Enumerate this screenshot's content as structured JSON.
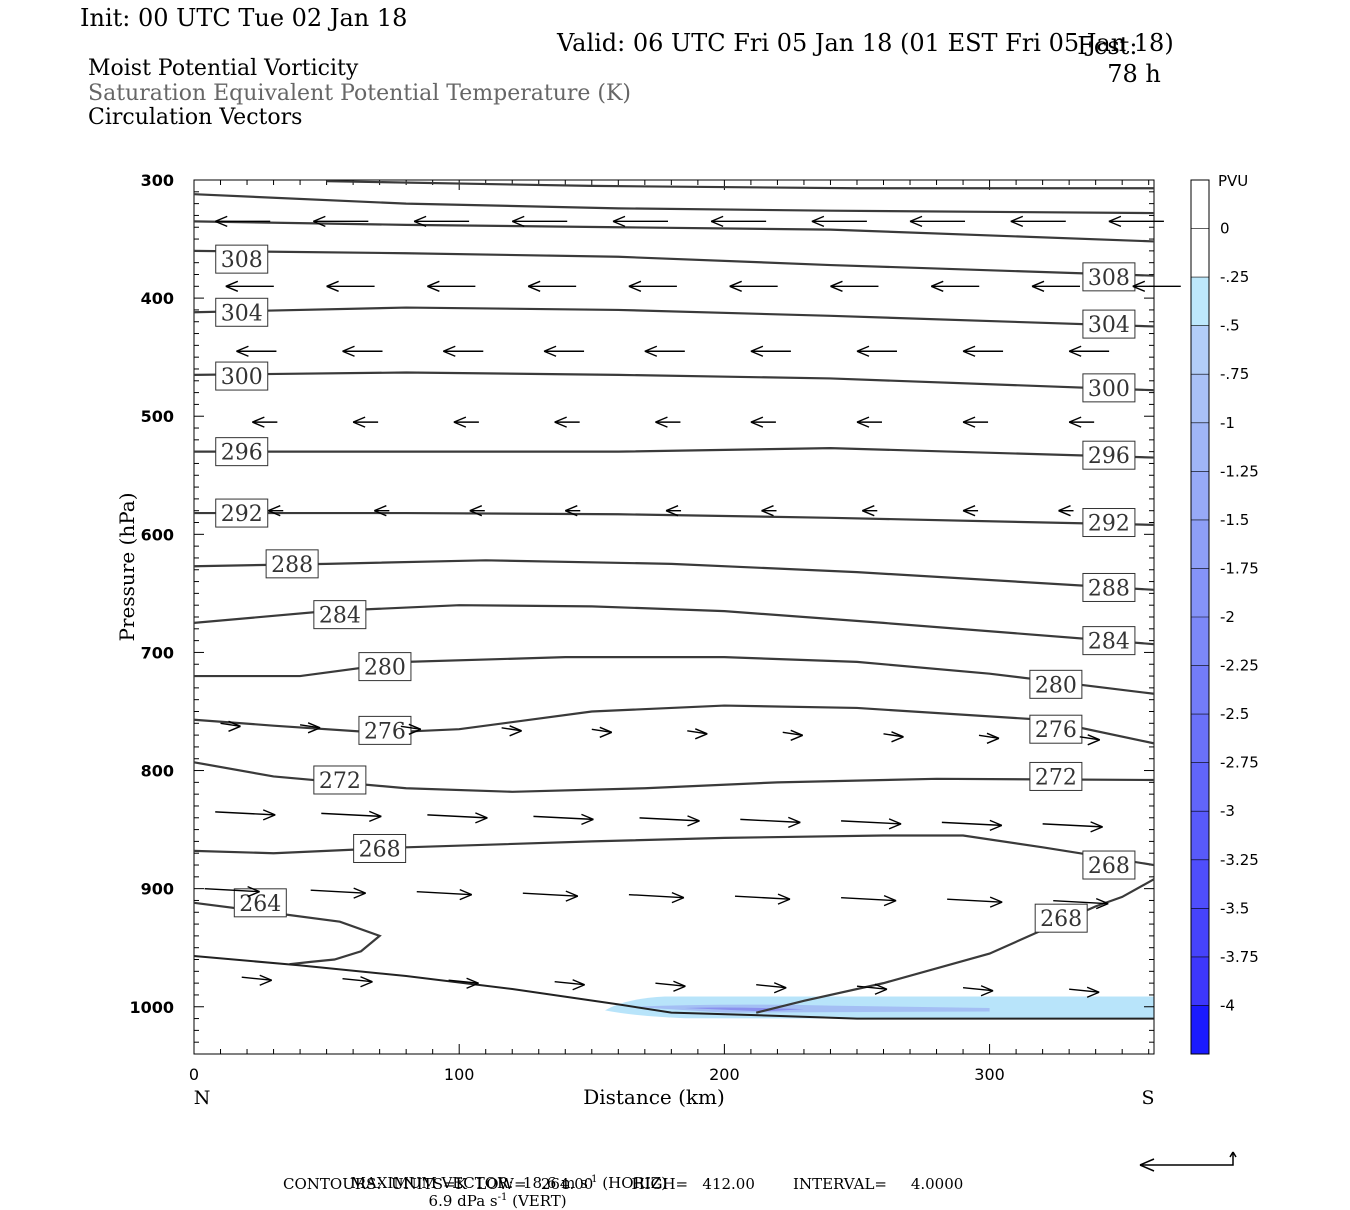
{
  "header": {
    "init": "Init: 00 UTC Tue 02 Jan 18",
    "fcst_label": "Fcst:",
    "fcst_value": "78 h",
    "valid": "Valid: 06 UTC Fri 05 Jan 18 (01 EST Fri 05 Jan 18)",
    "title1": "Moist Potential Vorticity",
    "title2": "Saturation Equivalent Potential Temperature (K)",
    "title3": "Circulation Vectors"
  },
  "footer": {
    "max_vector_line": "MAXIMUM VECTOR:  18.6 m s",
    "max_vector_unit_exp": "-1",
    "horiz": " (HORIZ)",
    "vert_value": "6.9 dPa s",
    "vert_exp": "-1",
    "vert": " (VERT)",
    "contours": "CONTOURS:  UNITS=K  LOW=   264.00        HIGH=   412.00        INTERVAL=     4.0000"
  },
  "chart_data": {
    "type": "cross-section",
    "xlabel": "Distance (km)",
    "ylabel": "Pressure (hPa)",
    "xlim": [
      0,
      362
    ],
    "ylim": [
      1040,
      300
    ],
    "x_ticks": [
      0,
      100,
      200,
      300
    ],
    "y_ticks": [
      300,
      400,
      500,
      600,
      700,
      800,
      900,
      1000
    ],
    "x_end_labels": {
      "left": "N",
      "right": "S"
    },
    "colorbar": {
      "unit": "PVU",
      "levels": [
        "0",
        "-.25",
        "-.5",
        "-.75",
        "-1",
        "-1.25",
        "-1.5",
        "-1.75",
        "-2",
        "-2.25",
        "-2.5",
        "-2.75",
        "-3",
        "-3.25",
        "-3.5",
        "-3.75",
        "-4"
      ],
      "colors": [
        "#ffffff",
        "#ffffff",
        "#bde8fb",
        "#b2cdf8",
        "#a9c1f7",
        "#a0b6f7",
        "#97aaf7",
        "#8e9ff7",
        "#8593f8",
        "#7c88f8",
        "#737cf9",
        "#6a71f9",
        "#6165fa",
        "#585afa",
        "#4f4efb",
        "#4643fb",
        "#3d37fc",
        "#1a1aff"
      ]
    },
    "contours": [
      {
        "label": "264",
        "points": [
          [
            0,
            912
          ],
          [
            28,
            920
          ],
          [
            55,
            928
          ],
          [
            70,
            940
          ],
          [
            63,
            953
          ],
          [
            53,
            960
          ],
          [
            44,
            962
          ],
          [
            36,
            964
          ]
        ]
      },
      {
        "label": "268",
        "points": [
          [
            0,
            868
          ],
          [
            30,
            870
          ],
          [
            80,
            865
          ],
          [
            150,
            860
          ],
          [
            200,
            857
          ],
          [
            260,
            855
          ],
          [
            290,
            855
          ],
          [
            320,
            865
          ],
          [
            362,
            880
          ]
        ]
      },
      {
        "label": "268",
        "points": [
          [
            212,
            1005
          ],
          [
            230,
            995
          ],
          [
            260,
            980
          ],
          [
            300,
            955
          ],
          [
            340,
            915
          ],
          [
            350,
            907
          ],
          [
            362,
            892
          ]
        ]
      },
      {
        "label": "272",
        "points": [
          [
            0,
            793
          ],
          [
            30,
            805
          ],
          [
            80,
            815
          ],
          [
            120,
            818
          ],
          [
            170,
            815
          ],
          [
            220,
            810
          ],
          [
            280,
            807
          ],
          [
            362,
            808
          ]
        ]
      },
      {
        "label": "276",
        "points": [
          [
            0,
            757
          ],
          [
            30,
            762
          ],
          [
            70,
            768
          ],
          [
            100,
            765
          ],
          [
            150,
            750
          ],
          [
            200,
            745
          ],
          [
            250,
            747
          ],
          [
            320,
            757
          ],
          [
            362,
            777
          ]
        ]
      },
      {
        "label": "280",
        "points": [
          [
            0,
            720
          ],
          [
            40,
            720
          ],
          [
            80,
            708
          ],
          [
            140,
            704
          ],
          [
            200,
            704
          ],
          [
            250,
            708
          ],
          [
            300,
            718
          ],
          [
            362,
            735
          ]
        ]
      },
      {
        "label": "284",
        "points": [
          [
            0,
            675
          ],
          [
            50,
            665
          ],
          [
            100,
            660
          ],
          [
            150,
            661
          ],
          [
            200,
            665
          ],
          [
            260,
            675
          ],
          [
            362,
            693
          ]
        ]
      },
      {
        "label": "288",
        "points": [
          [
            0,
            627
          ],
          [
            50,
            625
          ],
          [
            110,
            622
          ],
          [
            180,
            625
          ],
          [
            250,
            632
          ],
          [
            362,
            647
          ]
        ]
      },
      {
        "label": "292",
        "points": [
          [
            0,
            582
          ],
          [
            80,
            582
          ],
          [
            160,
            583
          ],
          [
            240,
            586
          ],
          [
            362,
            592
          ]
        ]
      },
      {
        "label": "296",
        "points": [
          [
            0,
            530
          ],
          [
            80,
            530
          ],
          [
            160,
            530
          ],
          [
            240,
            527
          ],
          [
            362,
            535
          ]
        ]
      },
      {
        "label": "300",
        "points": [
          [
            0,
            465
          ],
          [
            80,
            463
          ],
          [
            160,
            465
          ],
          [
            240,
            468
          ],
          [
            362,
            478
          ]
        ]
      },
      {
        "label": "304",
        "points": [
          [
            0,
            412
          ],
          [
            80,
            408
          ],
          [
            160,
            410
          ],
          [
            240,
            415
          ],
          [
            362,
            424
          ]
        ]
      },
      {
        "label": "308",
        "points": [
          [
            0,
            360
          ],
          [
            80,
            362
          ],
          [
            160,
            365
          ],
          [
            240,
            372
          ],
          [
            362,
            381
          ]
        ]
      },
      {
        "label": "",
        "points": [
          [
            0,
            312
          ],
          [
            80,
            320
          ],
          [
            160,
            324
          ],
          [
            240,
            326
          ],
          [
            362,
            328
          ]
        ]
      },
      {
        "label": "",
        "points": [
          [
            0,
            335
          ],
          [
            80,
            338
          ],
          [
            160,
            340
          ],
          [
            240,
            342
          ],
          [
            362,
            352
          ]
        ]
      },
      {
        "label": "",
        "points": [
          [
            50,
            301
          ],
          [
            150,
            305
          ],
          [
            250,
            307
          ],
          [
            362,
            307
          ]
        ]
      }
    ],
    "terrain": [
      [
        0,
        957
      ],
      [
        40,
        965
      ],
      [
        80,
        974
      ],
      [
        120,
        985
      ],
      [
        160,
        998
      ],
      [
        180,
        1005
      ],
      [
        210,
        1007
      ],
      [
        250,
        1010
      ],
      [
        362,
        1010
      ]
    ],
    "pv_shading": {
      "value": "-0.5 to -1 PVU",
      "x_range": [
        155,
        362
      ],
      "p_range": [
        993,
        1008
      ]
    },
    "vectors": [
      {
        "row_p": 335,
        "xs": [
          8,
          45,
          83,
          120,
          158,
          195,
          233,
          270,
          308,
          345
        ],
        "u": -1,
        "len": 55
      },
      {
        "row_p": 390,
        "xs": [
          12,
          50,
          88,
          126,
          164,
          202,
          240,
          278,
          316,
          354
        ],
        "u": -1,
        "len": 48
      },
      {
        "row_p": 445,
        "xs": [
          16,
          56,
          94,
          132,
          170,
          210,
          250,
          290,
          330
        ],
        "u": -1,
        "len": 40
      },
      {
        "row_p": 505,
        "xs": [
          22,
          60,
          98,
          136,
          174,
          210,
          250,
          290,
          330
        ],
        "u": -1,
        "len": 25
      },
      {
        "row_p": 580,
        "xs": [
          28,
          68,
          104,
          140,
          178,
          214,
          252,
          290,
          326
        ],
        "u": -1,
        "len": 15
      },
      {
        "row_p": 760,
        "xs": [
          10,
          40,
          78,
          116,
          150,
          186,
          222,
          260,
          296,
          334
        ],
        "u": 1,
        "len": 20
      },
      {
        "row_p": 835,
        "xs": [
          8,
          48,
          88,
          128,
          168,
          206,
          244,
          282,
          320
        ],
        "u": 1,
        "len": 60
      },
      {
        "row_p": 900,
        "xs": [
          4,
          44,
          84,
          124,
          164,
          204,
          244,
          284,
          324
        ],
        "u": 1,
        "len": 55
      },
      {
        "row_p": 975,
        "xs": [
          18,
          56,
          96,
          136,
          174,
          212,
          250,
          290,
          330
        ],
        "u": 1,
        "len": 30
      }
    ]
  }
}
